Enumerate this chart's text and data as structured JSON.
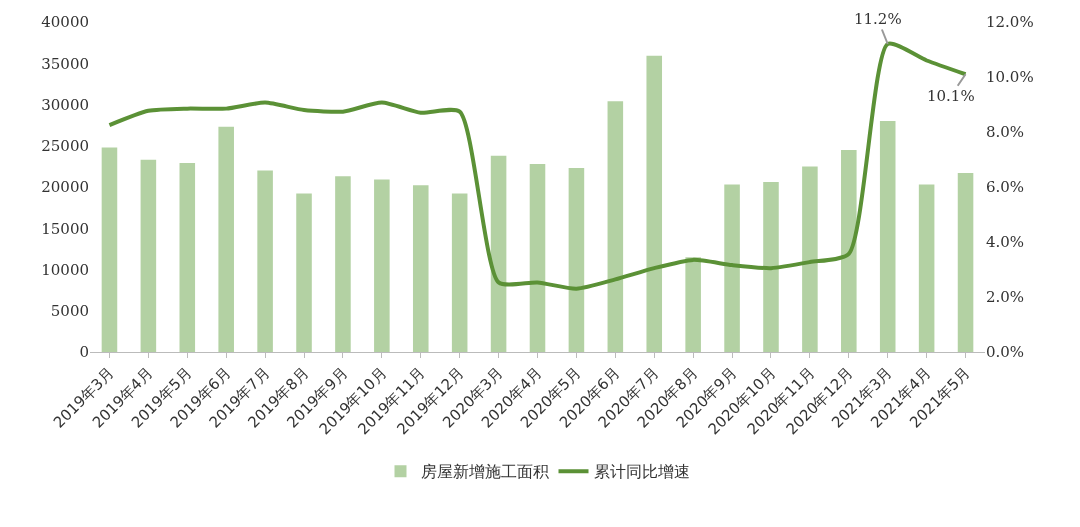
{
  "chart_data": {
    "type": "bar",
    "categories": [
      "2019年3月",
      "2019年4月",
      "2019年5月",
      "2019年6月",
      "2019年7月",
      "2019年8月",
      "2019年9月",
      "2019年10月",
      "2019年11月",
      "2019年12月",
      "2020年3月",
      "2020年4月",
      "2020年5月",
      "2020年6月",
      "2020年7月",
      "2020年8月",
      "2020年9月",
      "2020年10月",
      "2020年11月",
      "2020年12月",
      "2021年3月",
      "2021年4月",
      "2021年5月"
    ],
    "series": [
      {
        "name": "房屋新增施工面积",
        "color": "#b3d1a3",
        "values": [
          24800,
          23300,
          22900,
          27300,
          22000,
          19200,
          21300,
          20900,
          20200,
          19200,
          23800,
          22800,
          22300,
          30400,
          35900,
          11500,
          20300,
          20600,
          22500,
          24500,
          28000,
          20300,
          21700
        ]
      },
      {
        "name": "累计同比增速",
        "type": "line",
        "axis": "y2",
        "color": "#5b9136",
        "values": [
          8.25,
          8.77,
          8.85,
          8.85,
          9.07,
          8.8,
          8.74,
          9.07,
          8.7,
          8.74,
          2.53,
          2.53,
          2.3,
          2.64,
          3.05,
          3.35,
          3.16,
          3.05,
          3.27,
          3.57,
          11.2,
          10.6,
          10.1
        ],
        "value_labels": [
          null,
          null,
          null,
          null,
          null,
          null,
          null,
          null,
          null,
          null,
          null,
          null,
          null,
          null,
          null,
          null,
          null,
          null,
          null,
          null,
          "11.2%",
          null,
          "10.1%"
        ]
      }
    ],
    "ylim": [
      0,
      40000
    ],
    "yticks": [
      0,
      5000,
      10000,
      15000,
      20000,
      25000,
      30000,
      35000,
      40000
    ],
    "y2lim": [
      0,
      12
    ],
    "y2ticks": [
      {
        "value": 0,
        "label": "0.0%"
      },
      {
        "value": 2,
        "label": "2.0%"
      },
      {
        "value": 4,
        "label": "4.0%"
      },
      {
        "value": 6,
        "label": "6.0%"
      },
      {
        "value": 8,
        "label": "8.0%"
      },
      {
        "value": 10,
        "label": "10.0%"
      },
      {
        "value": 12,
        "label": "12.0%"
      }
    ],
    "grid": false,
    "legend": "bottom",
    "marker": "none",
    "line_style": "solid"
  }
}
